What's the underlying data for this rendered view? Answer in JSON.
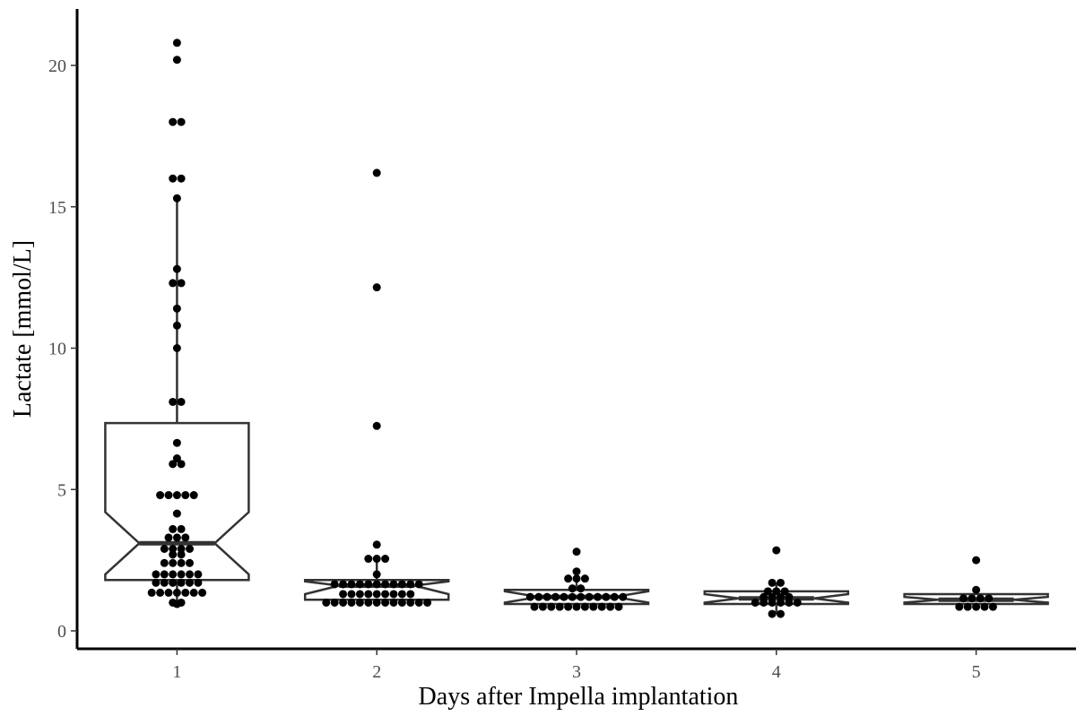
{
  "chart_data": {
    "type": "boxplot",
    "xlabel": "Days after Impella implantation",
    "ylabel": "Lactate [mmol/L]",
    "ylim": [
      -0.6,
      22.0
    ],
    "y_ticks": [
      0,
      5,
      10,
      15,
      20
    ],
    "categories": [
      "1",
      "2",
      "3",
      "4",
      "5"
    ],
    "boxes": [
      {
        "category": "1",
        "q1": 1.8,
        "median": 3.1,
        "q3": 7.35,
        "notch_low": 2.0,
        "notch_high": 4.2,
        "whisker_low": 0.95,
        "whisker_high": 15.3
      },
      {
        "category": "2",
        "q1": 1.1,
        "median": 1.6,
        "q3": 1.8,
        "notch_low": 1.3,
        "notch_high": 1.75,
        "whisker_low": 1.0,
        "whisker_high": 2.6
      },
      {
        "category": "3",
        "q1": 0.95,
        "median": 1.2,
        "q3": 1.45,
        "notch_low": 1.0,
        "notch_high": 1.4,
        "whisker_low": 0.8,
        "whisker_high": 2.1
      },
      {
        "category": "4",
        "q1": 0.95,
        "median": 1.15,
        "q3": 1.4,
        "notch_low": 1.0,
        "notch_high": 1.3,
        "whisker_low": 0.6,
        "whisker_high": 1.7
      },
      {
        "category": "5",
        "q1": 0.95,
        "median": 1.1,
        "q3": 1.3,
        "notch_low": 1.0,
        "notch_high": 1.2,
        "whisker_low": 0.8,
        "whisker_high": 1.45
      }
    ],
    "points": [
      {
        "category": "1",
        "values": [
          20.8,
          20.2,
          18.0,
          18.0,
          16.0,
          16.0,
          15.3,
          12.8,
          12.3,
          12.3,
          11.4,
          10.8,
          10.0,
          8.1,
          8.1,
          6.65,
          6.1,
          5.9,
          5.9,
          4.8,
          4.8,
          4.8,
          4.8,
          4.8,
          4.15,
          3.6,
          3.6,
          3.3,
          3.3,
          3.3,
          2.9,
          2.9,
          2.9,
          2.9,
          2.7,
          2.7,
          2.4,
          2.4,
          2.4,
          2.4,
          2.0,
          2.0,
          2.0,
          2.0,
          2.0,
          2.0,
          1.7,
          1.7,
          1.7,
          1.7,
          1.7,
          1.7,
          1.35,
          1.35,
          1.35,
          1.35,
          1.35,
          1.35,
          1.35,
          1.0,
          1.0,
          0.95
        ]
      },
      {
        "category": "2",
        "values": [
          16.2,
          12.15,
          7.25,
          3.05,
          2.55,
          2.55,
          2.55,
          2.0,
          1.65,
          1.65,
          1.65,
          1.65,
          1.65,
          1.65,
          1.65,
          1.65,
          1.65,
          1.65,
          1.65,
          1.3,
          1.3,
          1.3,
          1.3,
          1.3,
          1.3,
          1.3,
          1.3,
          1.3,
          1.0,
          1.0,
          1.0,
          1.0,
          1.0,
          1.0,
          1.0,
          1.0,
          1.0,
          1.0,
          1.0,
          1.0,
          1.0
        ]
      },
      {
        "category": "3",
        "values": [
          2.8,
          2.1,
          1.85,
          1.85,
          1.85,
          1.5,
          1.5,
          1.2,
          1.2,
          1.2,
          1.2,
          1.2,
          1.2,
          1.2,
          1.2,
          1.2,
          1.2,
          1.2,
          1.2,
          0.85,
          0.85,
          0.85,
          0.85,
          0.85,
          0.85,
          0.85,
          0.85,
          0.85,
          0.85,
          0.85
        ]
      },
      {
        "category": "4",
        "values": [
          2.85,
          1.7,
          1.7,
          1.4,
          1.4,
          1.4,
          1.2,
          1.2,
          1.2,
          1.2,
          1.0,
          1.0,
          1.0,
          1.0,
          1.0,
          1.0,
          0.6,
          0.6
        ]
      },
      {
        "category": "5",
        "values": [
          2.5,
          1.45,
          1.15,
          1.15,
          1.15,
          1.15,
          0.85,
          0.85,
          0.85,
          0.85,
          0.85
        ]
      }
    ]
  }
}
